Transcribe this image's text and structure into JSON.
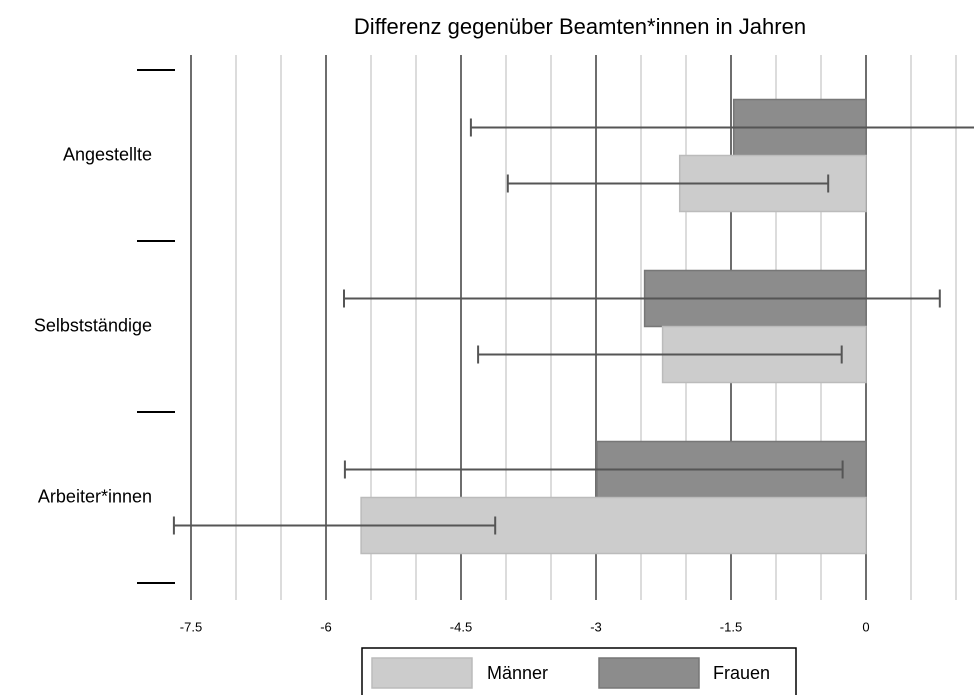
{
  "chart_data": {
    "type": "bar",
    "orientation": "horizontal",
    "title": "Differenz gegenüber Beamten*innen in Jahren",
    "categories": [
      "Angestellte",
      "Selbstständige",
      "Arbeiter*innen"
    ],
    "series": [
      {
        "name": "Frauen",
        "color": "#8c8c8c",
        "values": [
          -1.47,
          -2.46,
          -2.99
        ],
        "ci_low": [
          -4.39,
          -5.8,
          -5.79
        ],
        "ci_high": [
          1.3,
          0.82,
          -0.26
        ]
      },
      {
        "name": "Männer",
        "color": "#cccccc",
        "values": [
          -2.07,
          -2.26,
          -5.61
        ],
        "ci_low": [
          -3.98,
          -4.31,
          -7.69
        ],
        "ci_high": [
          -0.42,
          -0.27,
          -4.12
        ]
      }
    ],
    "xlim": [
      -7.7,
      1.2
    ],
    "xticks": [
      -7.5,
      -6,
      -4.5,
      -3,
      -1.5,
      0
    ],
    "xminor": [
      -7,
      -6.5,
      -5.5,
      -5,
      -4,
      -3.5,
      -2.5,
      -2,
      -1,
      -0.5,
      0.5,
      1
    ],
    "grid": true
  }
}
